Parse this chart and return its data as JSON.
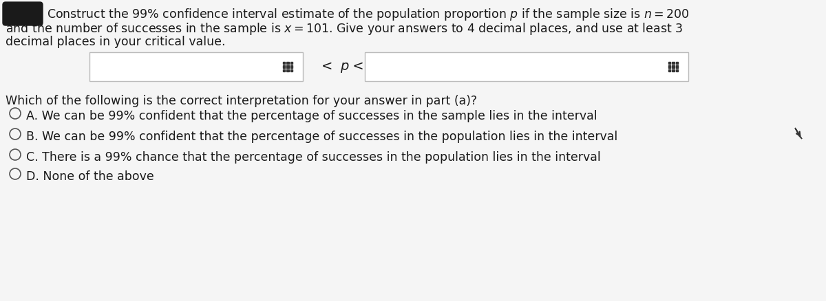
{
  "background_color": "#e8e8e8",
  "content_bg": "#ffffff",
  "line1": "Construct the 99% confidence interval estimate of the population proportion $p$ if the sample size is $n = 200$",
  "line2": "and the number of successes in the sample is $x = 101$. Give your answers to 4 decimal places, and use at least 3",
  "line3": "decimal places in your critical value.",
  "middle_text": "< p <",
  "question_text": "Which of the following is the correct interpretation for your answer in part (a)?",
  "option_A": "A. We can be 99% confident that the percentage of successes in the sample lies in the interval",
  "option_B": "B. We can be 99% confident that the percentage of successes in the population lies in the interval",
  "option_C": "C. There is a 99% chance that the percentage of successes in the population lies in the interval",
  "option_D": "D. None of the above",
  "text_color": "#1a1a1a",
  "box_fill": "#f8f8f8",
  "box_edge": "#cccccc",
  "icon_color": "#333333",
  "circle_color": "#555555",
  "icon_shape_color": "#222222"
}
